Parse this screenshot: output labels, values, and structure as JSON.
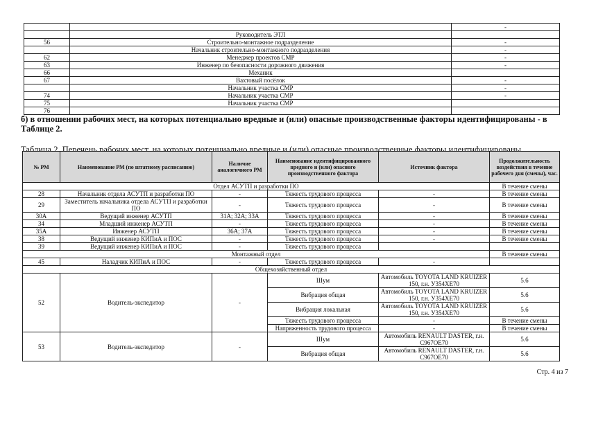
{
  "top_table": {
    "rows": [
      [
        "",
        "",
        "-"
      ],
      [
        "",
        "Руководитель ЭТЛ",
        ""
      ],
      [
        "56",
        "Строительно-монтажное подразделение",
        "-"
      ],
      [
        "",
        "Начальник строительно-монтажного подразделения",
        "-"
      ],
      [
        "62",
        "Менеджер проектов СМР",
        "-"
      ],
      [
        "63",
        "Инженер по безопасности дорожного движения",
        "-"
      ],
      [
        "66",
        "Механик",
        ""
      ],
      [
        "67",
        "Вахтовый посёлок",
        "-"
      ],
      [
        "",
        "Начальник участка СМР",
        "-"
      ],
      [
        "74",
        "Начальник участка СМР",
        "-"
      ],
      [
        "75",
        "Начальник участка СМР",
        ""
      ],
      [
        "76",
        "",
        ""
      ]
    ]
  },
  "heading": "б) в отношении рабочих мест, на которых потенциально вредные и (или) опасные производственные факторы идентифицированы - в Таблице 2.",
  "caption": "Таблица 2. Перечень рабочих мест, на которых потенциально вредные и (или) опасные производственные факторы идентифицированы",
  "table2": {
    "headers": [
      "№ РМ",
      "Наименование РМ (по штатному расписанию)",
      "Наличие аналогичного РМ",
      "Наименование идентифицированного вредного и (или) опасного производственного фактора",
      "Источник фактора",
      "Продолжительность воздействия в течение рабочего дня (смены), час."
    ],
    "sections": {
      "asutp": "Отдел АСУТП и разработки ПО",
      "asutp_duration": "В течение смены",
      "montazh": "Монтажный отдел",
      "montazh_duration": "В течение смены",
      "general": "Общехозяйственный отдел"
    },
    "rows": [
      [
        "28",
        "Начальник отдела АСУТП и разработки ПО",
        "-",
        "Тяжесть трудового процесса",
        "-",
        "В течение смены"
      ],
      [
        "29",
        "Заместитель начальника отдела АСУТП и разработки ПО",
        "-",
        "Тяжесть трудового процесса",
        "-",
        "В течение смены"
      ],
      [
        "30А",
        "Ведущий инженер АСУТП",
        "31А; 32А; 33А",
        "Тяжесть трудового процесса",
        "-",
        "В течение смены"
      ],
      [
        "34",
        "Младший инженер АСУТП",
        "-",
        "Тяжесть трудового процесса",
        "-",
        "В течение смены"
      ],
      [
        "35А",
        "Инженер АСУТП",
        "36А; 37А",
        "Тяжесть трудового процесса",
        "-",
        "В течение смены"
      ],
      [
        "38",
        "Ведущий инженер КИПиА и ПОС",
        "-",
        "Тяжесть трудового процесса",
        "-",
        "В течение смены"
      ],
      [
        "39",
        "Ведущий инженер КИПиА и ПОС",
        "-",
        "Тяжесть трудового процесса",
        "",
        ""
      ]
    ],
    "row45": [
      "45",
      "Наладчик КИПиА и ПОС",
      "-",
      "Тяжесть трудового процесса",
      "-",
      ""
    ],
    "row52": {
      "num": "52",
      "name": "Водитель-экспедитор",
      "analog": "-",
      "factors": [
        [
          "Шум",
          "Автомобиль TOYOTA LAND KRUIZER 150, г.н. У354ХЕ70",
          "5.6"
        ],
        [
          "Вибрация общая",
          "Автомобиль TOYOTA LAND KRUIZER 150, г.н. У354ХЕ70",
          "5.6"
        ],
        [
          "Вибрация локальная",
          "Автомобиль TOYOTA LAND KRUIZER 150, г.н. У354ХЕ70",
          "5.6"
        ],
        [
          "Тяжесть трудового процесса",
          "-",
          "В течение смены"
        ],
        [
          "Напряженность трудового процесса",
          "-",
          "В течение смены"
        ]
      ]
    },
    "row53": {
      "num": "53",
      "name": "Водитель-экспедитор",
      "analog": "-",
      "factors": [
        [
          "Шум",
          "Автомобиль RENAULT DASTER, г.н. С967ОЕ70",
          "5.6"
        ],
        [
          "Вибрация общая",
          "Автомобиль RENAULT DASTER, г.н. С967ОЕ70",
          "5.6"
        ]
      ]
    }
  },
  "page_number": "Стр. 4 из 7"
}
